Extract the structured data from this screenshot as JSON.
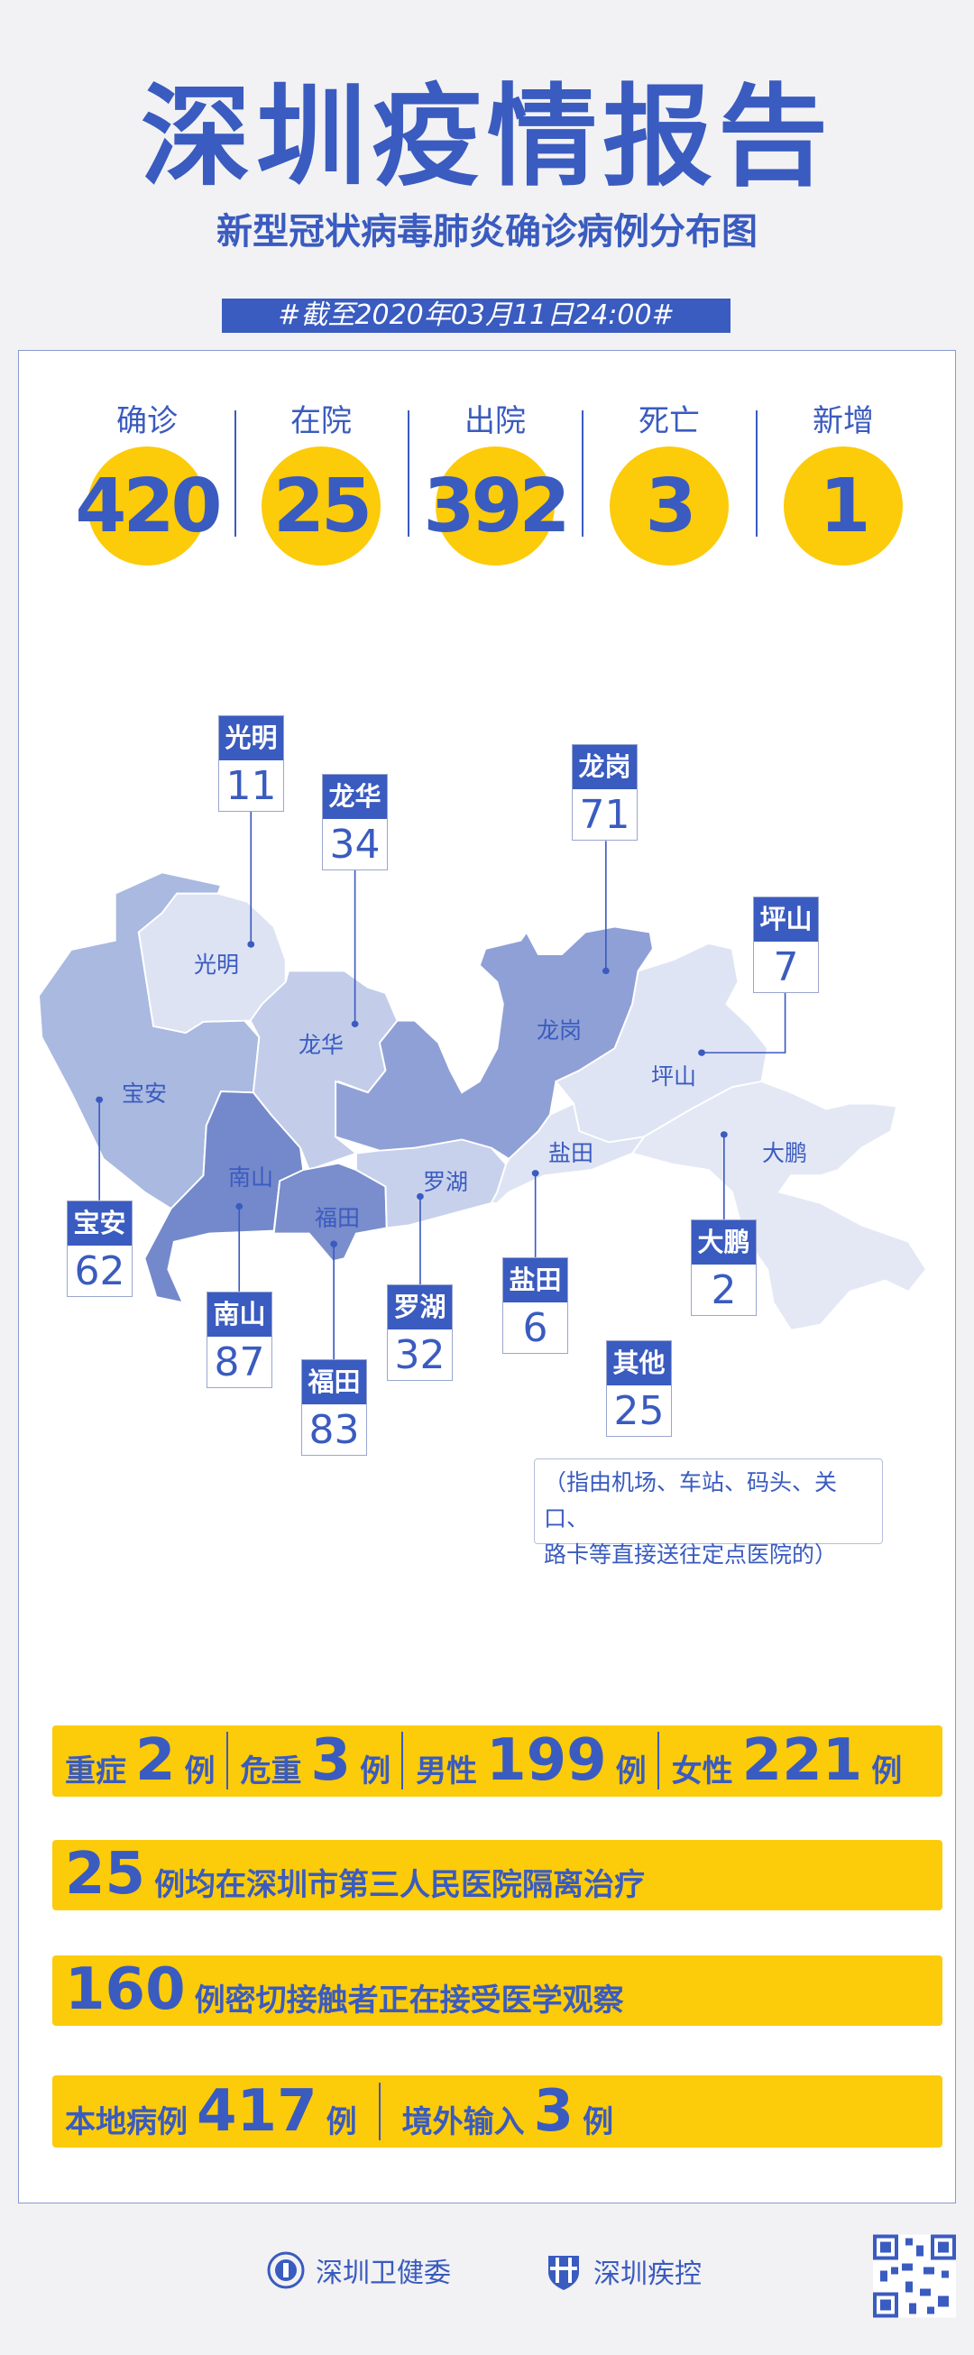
{
  "header": {
    "title": "深圳疫情报告",
    "subtitle": "新型冠状病毒肺炎确诊病例分布图",
    "as_of": "#截至2020年03月11日24:00#"
  },
  "stats": [
    {
      "label": "确诊",
      "value": "420"
    },
    {
      "label": "在院",
      "value": "25"
    },
    {
      "label": "出院",
      "value": "392"
    },
    {
      "label": "死亡",
      "value": "3"
    },
    {
      "label": "新增",
      "value": "1"
    }
  ],
  "map": {
    "regions": [
      "光明",
      "龙华",
      "宝安",
      "南山",
      "福田",
      "罗湖",
      "龙岗",
      "坪山",
      "盐田",
      "大鹏"
    ],
    "callouts": [
      {
        "name": "光明",
        "value": "11"
      },
      {
        "name": "龙华",
        "value": "34"
      },
      {
        "name": "龙岗",
        "value": "71"
      },
      {
        "name": "坪山",
        "value": "7"
      },
      {
        "name": "宝安",
        "value": "62"
      },
      {
        "name": "南山",
        "value": "87"
      },
      {
        "name": "福田",
        "value": "83"
      },
      {
        "name": "罗湖",
        "value": "32"
      },
      {
        "name": "盐田",
        "value": "6"
      },
      {
        "name": "大鹏",
        "value": "2"
      },
      {
        "name": "其他",
        "value": "25"
      }
    ],
    "note_line1": "（指由机场、车站、码头、关口、",
    "note_line2": "路卡等直接送往定点医院的）"
  },
  "bars": {
    "b1": [
      {
        "label": "重症",
        "value": "2",
        "unit": "例"
      },
      {
        "label": "危重",
        "value": "3",
        "unit": "例"
      },
      {
        "label": "男性",
        "value": "199",
        "unit": "例"
      },
      {
        "label": "女性",
        "value": "221",
        "unit": "例"
      }
    ],
    "b2": {
      "value": "25",
      "text": "例均在深圳市第三人民医院隔离治疗"
    },
    "b3": {
      "value": "160",
      "text": "例密切接触者正在接受医学观察"
    },
    "b4": [
      {
        "label": "本地病例",
        "value": "417",
        "unit": "例"
      },
      {
        "label": "境外输入",
        "value": "3",
        "unit": "例"
      }
    ]
  },
  "footer": {
    "org1": "深圳卫健委",
    "org2": "深圳疾控"
  },
  "colors": {
    "blue": "#3a5bbf",
    "yellow": "#fccb0a",
    "background": "#f2f2f4"
  }
}
